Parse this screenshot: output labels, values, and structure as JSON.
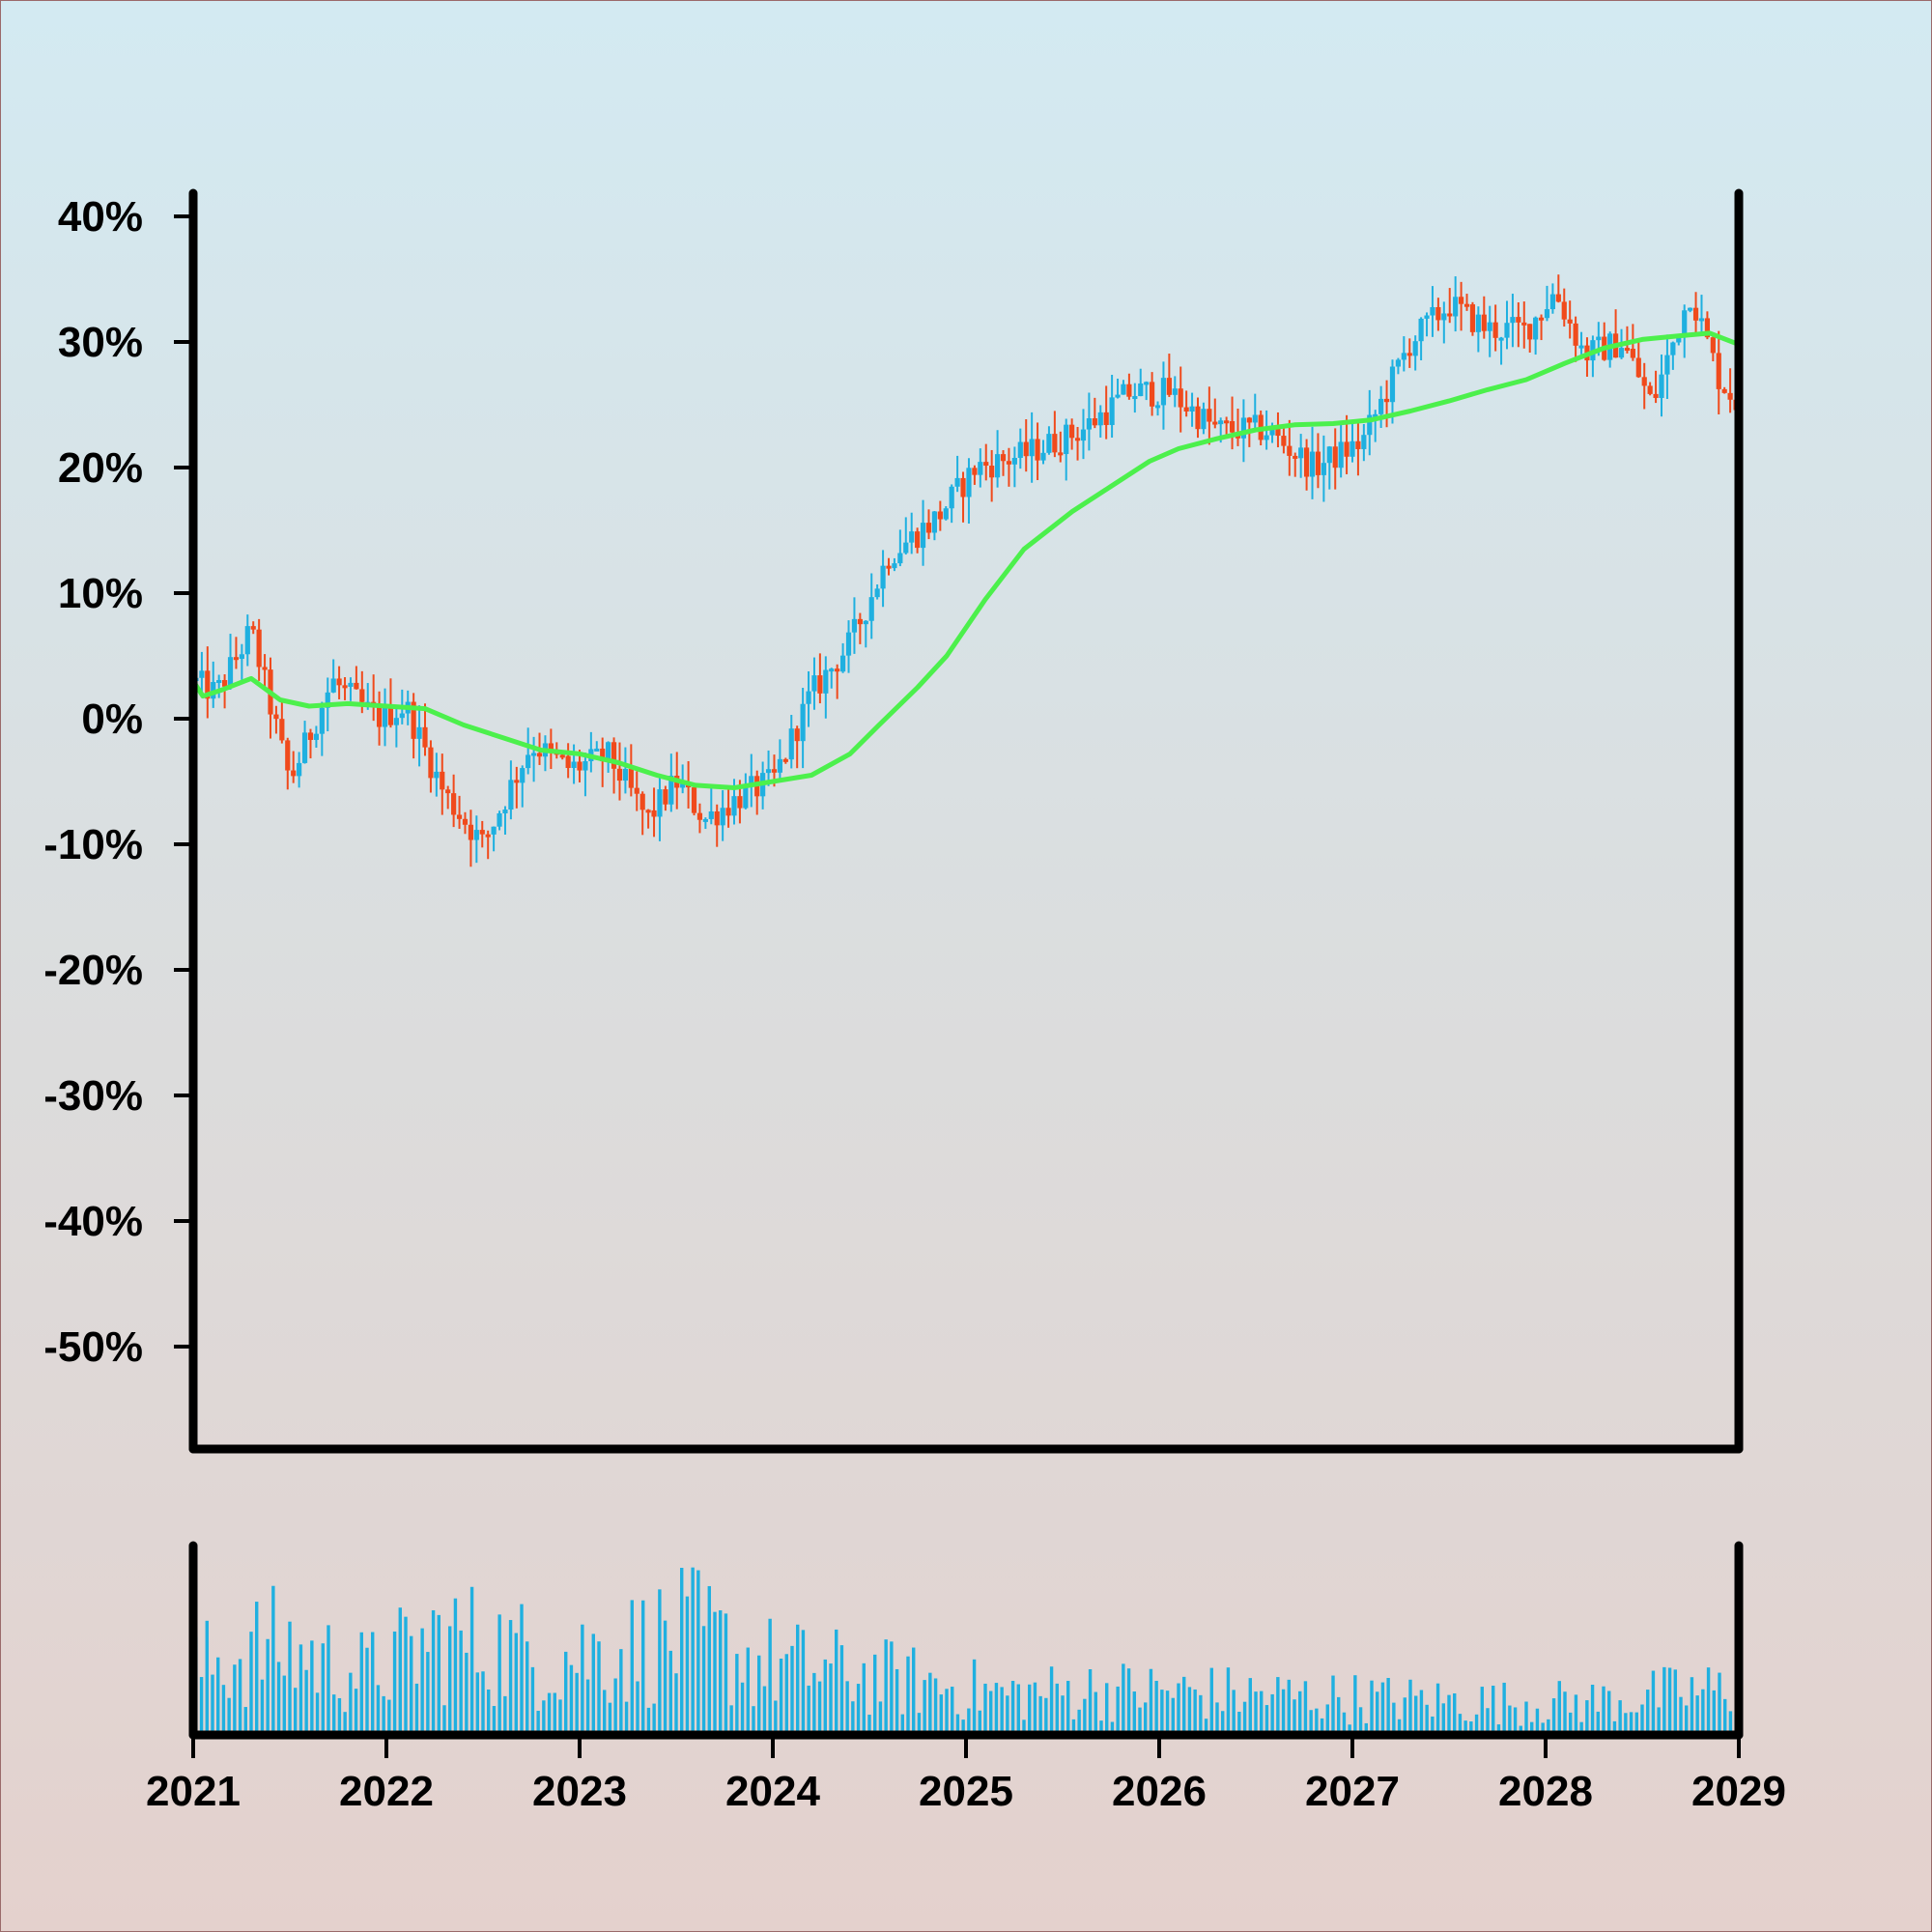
{
  "chart_data": [
    {
      "type": "candlestick",
      "panel": "price",
      "x_ticks": [
        "2021",
        "2022",
        "2023",
        "2024",
        "2025",
        "2026",
        "2027",
        "2028",
        "2029"
      ],
      "y_ticks": [
        "40%",
        "30%",
        "20%",
        "10%",
        "0%",
        "-10%",
        "-20%",
        "-30%",
        "-40%",
        "-50%"
      ],
      "ylim": [
        -58,
        40
      ],
      "xlim": [
        "2021",
        "2029"
      ],
      "up_color": "#1fb0e0",
      "down_color": "#f04a1c",
      "ma_color": "#4cf04c",
      "grid": false,
      "price_path": [
        [
          "2021.00",
          3
        ],
        [
          "2021.12",
          2
        ],
        [
          "2021.30",
          7
        ],
        [
          "2021.50",
          -5
        ],
        [
          "2021.72",
          3
        ],
        [
          "2021.95",
          0
        ],
        [
          "2022.10",
          1
        ],
        [
          "2022.30",
          -6
        ],
        [
          "2022.50",
          -10
        ],
        [
          "2022.75",
          -2
        ],
        [
          "2022.95",
          -4
        ],
        [
          "2023.15",
          -3
        ],
        [
          "2023.35",
          -8
        ],
        [
          "2023.50",
          -5
        ],
        [
          "2023.65",
          -8
        ],
        [
          "2023.85",
          -6
        ],
        [
          "2024.00",
          -5
        ],
        [
          "2024.20",
          2
        ],
        [
          "2024.40",
          6
        ],
        [
          "2024.60",
          13
        ],
        [
          "2024.85",
          16
        ],
        [
          "2025.05",
          20
        ],
        [
          "2025.30",
          21
        ],
        [
          "2025.60",
          23
        ],
        [
          "2025.85",
          26
        ],
        [
          "2026.05",
          26
        ],
        [
          "2026.30",
          23
        ],
        [
          "2026.55",
          23
        ],
        [
          "2026.80",
          20
        ],
        [
          "2027.05",
          22
        ],
        [
          "2027.30",
          30
        ],
        [
          "2027.50",
          33
        ],
        [
          "2027.70",
          31
        ],
        [
          "2027.90",
          31
        ],
        [
          "2028.05",
          34
        ],
        [
          "2028.20",
          29
        ],
        [
          "2028.40",
          30
        ],
        [
          "2028.55",
          25
        ],
        [
          "2028.75",
          34
        ],
        [
          "2028.90",
          27
        ],
        [
          "2029.00",
          25
        ]
      ],
      "moving_average": [
        [
          "2021.00",
          3
        ],
        [
          "2021.05",
          1.8
        ],
        [
          "2021.15",
          2.3
        ],
        [
          "2021.30",
          3.2
        ],
        [
          "2021.45",
          1.5
        ],
        [
          "2021.60",
          1.0
        ],
        [
          "2021.80",
          1.2
        ],
        [
          "2022.00",
          1.0
        ],
        [
          "2022.20",
          0.8
        ],
        [
          "2022.40",
          -0.5
        ],
        [
          "2022.60",
          -1.5
        ],
        [
          "2022.80",
          -2.5
        ],
        [
          "2023.00",
          -2.8
        ],
        [
          "2023.20",
          -3.5
        ],
        [
          "2023.40",
          -4.5
        ],
        [
          "2023.60",
          -5.3
        ],
        [
          "2023.80",
          -5.5
        ],
        [
          "2024.00",
          -5.0
        ],
        [
          "2024.20",
          -4.5
        ],
        [
          "2024.40",
          -2.8
        ],
        [
          "2024.55",
          -0.5
        ],
        [
          "2024.75",
          2.5
        ],
        [
          "2024.90",
          5.0
        ],
        [
          "2025.10",
          9.5
        ],
        [
          "2025.30",
          13.5
        ],
        [
          "2025.55",
          16.5
        ],
        [
          "2025.75",
          18.5
        ],
        [
          "2025.95",
          20.5
        ],
        [
          "2026.10",
          21.5
        ],
        [
          "2026.30",
          22.3
        ],
        [
          "2026.50",
          23.0
        ],
        [
          "2026.70",
          23.4
        ],
        [
          "2026.90",
          23.5
        ],
        [
          "2027.10",
          23.8
        ],
        [
          "2027.30",
          24.5
        ],
        [
          "2027.50",
          25.3
        ],
        [
          "2027.70",
          26.2
        ],
        [
          "2027.90",
          27.0
        ],
        [
          "2028.10",
          28.3
        ],
        [
          "2028.30",
          29.5
        ],
        [
          "2028.50",
          30.2
        ],
        [
          "2028.70",
          30.5
        ],
        [
          "2028.85",
          30.7
        ],
        [
          "2029.00",
          29.8
        ]
      ]
    },
    {
      "type": "bar",
      "panel": "volume",
      "bar_color": "#1fb0e0",
      "volume_profile": [
        [
          "2021.00",
          40
        ],
        [
          "2021.40",
          55
        ],
        [
          "2021.90",
          38
        ],
        [
          "2022.30",
          60
        ],
        [
          "2022.80",
          48
        ],
        [
          "2023.20",
          52
        ],
        [
          "2023.60",
          62
        ],
        [
          "2023.90",
          45
        ],
        [
          "2024.40",
          38
        ],
        [
          "2024.80",
          32
        ],
        [
          "2025.20",
          25
        ],
        [
          "2025.70",
          28
        ],
        [
          "2026.20",
          26
        ],
        [
          "2026.70",
          24
        ],
        [
          "2027.20",
          22
        ],
        [
          "2027.70",
          20
        ],
        [
          "2028.20",
          20
        ],
        [
          "2028.70",
          26
        ],
        [
          "2029.00",
          28
        ]
      ]
    }
  ]
}
